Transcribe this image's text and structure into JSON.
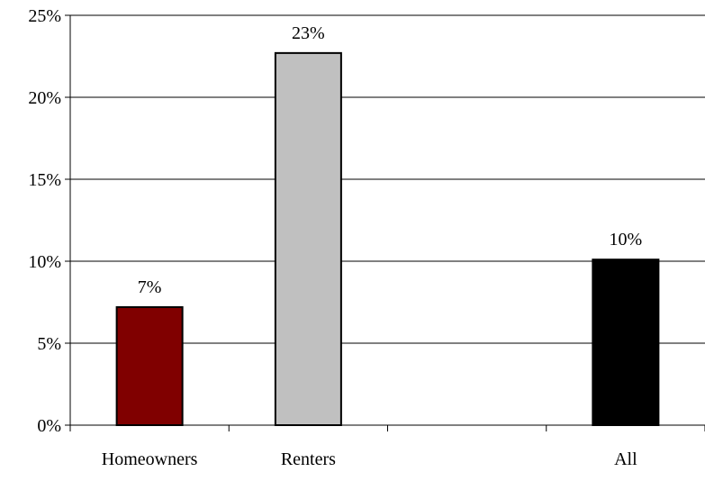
{
  "chart_data": {
    "type": "bar",
    "categories": [
      "Homeowners",
      "Renters",
      "",
      "All"
    ],
    "values": [
      7.2,
      22.7,
      null,
      10.1
    ],
    "data_labels": [
      "7%",
      "23%",
      "",
      "10%"
    ],
    "bar_colors": [
      "#800000",
      "#c0c0c0",
      "",
      "#000000"
    ],
    "ylim": [
      0,
      25
    ],
    "yticks": [
      0,
      5,
      10,
      15,
      20,
      25
    ],
    "ytick_labels": [
      "0%",
      "5%",
      "10%",
      "15%",
      "20%",
      "25%"
    ],
    "grid": true,
    "legend": "none",
    "title": "",
    "xlabel": "",
    "ylabel": ""
  }
}
